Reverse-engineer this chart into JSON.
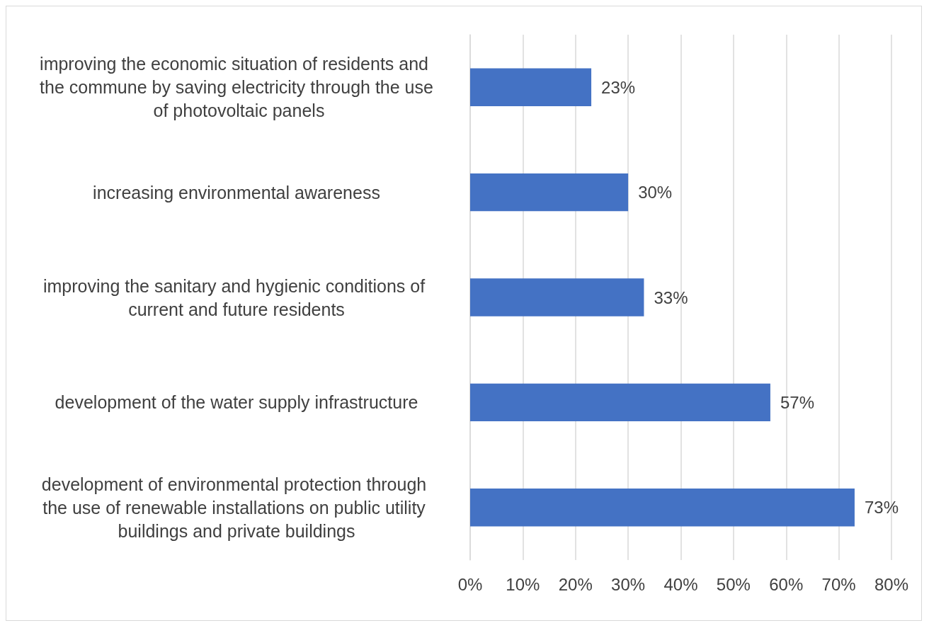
{
  "chart_data": {
    "type": "bar",
    "orientation": "horizontal",
    "categories": [
      "improving the economic situation of residents and the commune by saving electricity through the use of photovoltaic panels",
      "increasing environmental awareness",
      "improving the sanitary and hygienic conditions of current and future residents",
      "development of the water supply infrastructure",
      "development of environmental protection through the use of renewable installations on public utility buildings and private buildings"
    ],
    "values": [
      23,
      30,
      33,
      57,
      73
    ],
    "value_labels": [
      "23%",
      "30%",
      "33%",
      "57%",
      "73%"
    ],
    "color": "#4472c4",
    "xlim": [
      0,
      80
    ],
    "xticks": [
      {
        "value": 0,
        "label": "0%"
      },
      {
        "value": 10,
        "label": "10%"
      },
      {
        "value": 20,
        "label": "20%"
      },
      {
        "value": 30,
        "label": "30%"
      },
      {
        "value": 40,
        "label": "40%"
      },
      {
        "value": 50,
        "label": "50%"
      },
      {
        "value": 60,
        "label": "60%"
      },
      {
        "value": 70,
        "label": "70%"
      },
      {
        "value": 80,
        "label": "80%"
      }
    ],
    "grid": "x"
  }
}
